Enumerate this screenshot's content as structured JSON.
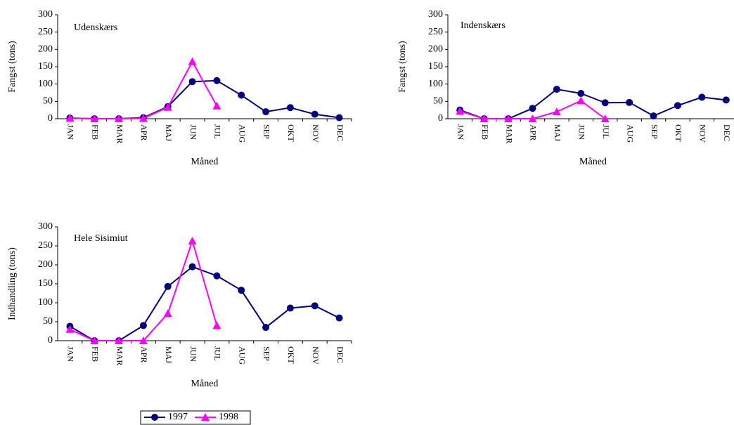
{
  "chart_data": [
    {
      "type": "line",
      "title": "Udenskærs",
      "x_label": "Måned",
      "y_label": "Fangst (tons)",
      "categories": [
        "JAN",
        "FEB",
        "MAR",
        "APR",
        "MAJ",
        "JUN",
        "JUL",
        "AUG",
        "SEP",
        "OKT",
        "NOV",
        "DEC"
      ],
      "series": [
        {
          "name": "1997",
          "color": "#000080",
          "marker": "circle",
          "values": [
            2,
            0,
            0,
            3,
            35,
            107,
            110,
            68,
            20,
            32,
            13,
            3
          ]
        },
        {
          "name": "1998",
          "color": "#ff00ff",
          "marker": "triangle",
          "values": [
            2,
            0,
            0,
            1,
            33,
            165,
            37,
            null,
            null,
            null,
            null,
            null
          ]
        }
      ],
      "ylim": [
        0,
        300
      ],
      "yticks": [
        0,
        50,
        100,
        150,
        200,
        250,
        300
      ]
    },
    {
      "type": "line",
      "title": "Indenskærs",
      "x_label": "Måned",
      "y_label": "Fangst (tons)",
      "categories": [
        "JAN",
        "FEB",
        "MAR",
        "APR",
        "MAJ",
        "JUN",
        "JUL",
        "AUG",
        "SEP",
        "OKT",
        "NOV",
        "DEC"
      ],
      "series": [
        {
          "name": "1997",
          "color": "#000080",
          "marker": "circle",
          "values": [
            25,
            0,
            0,
            30,
            85,
            73,
            46,
            47,
            8,
            38,
            62,
            54
          ]
        },
        {
          "name": "1998",
          "color": "#ff00ff",
          "marker": "triangle",
          "values": [
            22,
            0,
            0,
            0,
            20,
            52,
            0,
            null,
            null,
            null,
            null,
            null
          ]
        }
      ],
      "ylim": [
        0,
        300
      ],
      "yticks": [
        0,
        50,
        100,
        150,
        200,
        250,
        300
      ]
    },
    {
      "type": "line",
      "title": "Hele Sisimiut",
      "x_label": "Måned",
      "y_label": "Indhandling (tons)",
      "categories": [
        "JAN",
        "FEB",
        "MAR",
        "APR",
        "MAJ",
        "JUN",
        "JUL",
        "AUG",
        "SEP",
        "OKT",
        "NOV",
        "DEC"
      ],
      "series": [
        {
          "name": "1997",
          "color": "#000080",
          "marker": "circle",
          "values": [
            38,
            0,
            0,
            40,
            143,
            195,
            171,
            133,
            35,
            86,
            92,
            60
          ]
        },
        {
          "name": "1998",
          "color": "#ff00ff",
          "marker": "triangle",
          "values": [
            30,
            0,
            0,
            0,
            72,
            263,
            40,
            null,
            null,
            null,
            null,
            null
          ]
        }
      ],
      "ylim": [
        0,
        300
      ],
      "yticks": [
        0,
        50,
        100,
        150,
        200,
        250,
        300
      ]
    }
  ]
}
